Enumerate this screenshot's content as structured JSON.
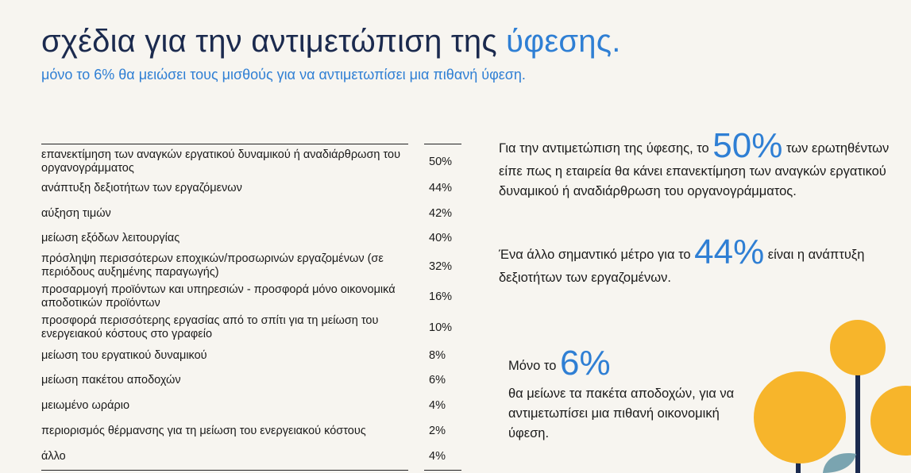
{
  "header": {
    "title_main": "σχέδια για την αντιμετώπιση της ",
    "title_accent": "ύφεσης.",
    "subtitle": "μόνο το 6% θα μειώσει τους μισθούς για να αντιμετωπίσει μια πιθανή ύφεση."
  },
  "table": {
    "rows": [
      {
        "label": "επανεκτίμηση των αναγκών εργατικού δυναμικού ή αναδιάρθρωση του οργανογράμματος",
        "value": "50%"
      },
      {
        "label": "ανάπτυξη δεξιοτήτων των εργαζόμενων",
        "value": "44%"
      },
      {
        "label": "αύξηση τιμών",
        "value": "42%"
      },
      {
        "label": "μείωση εξόδων λειτουργίας",
        "value": "40%"
      },
      {
        "label": "πρόσληψη περισσότερων εποχικών/προσωρινών εργαζομένων (σε περιόδους αυξημένης παραγωγής)",
        "value": "32%"
      },
      {
        "label": "προσαρμογή προϊόντων και υπηρεσιών - προσφορά μόνο οικονομικά αποδοτικών προϊόντων",
        "value": "16%"
      },
      {
        "label": "προσφορά περισσότερης εργασίας από το σπίτι για τη μείωση του ενεργειακού κόστους στο γραφείο",
        "value": "10%"
      },
      {
        "label": "μείωση του εργατικού δυναμικού",
        "value": "8%"
      },
      {
        "label": "μείωση πακέτου αποδοχών",
        "value": "6%"
      },
      {
        "label": "μειωμένο ωράριο",
        "value": "4%"
      },
      {
        "label": "περιορισμός θέρμανσης για τη μείωση του ενεργειακού κόστους",
        "value": "2%"
      },
      {
        "label": "άλλο",
        "value": "4%"
      }
    ]
  },
  "callouts": {
    "c1_pre": "Για την αντιμετώπιση της ύφεσης, το ",
    "c1_big": "50%",
    "c1_post": " των ερωτηθέντων είπε πως η εταιρεία θα κάνει επανεκτίμηση των αναγκών εργατικού δυναμικού ή αναδιάρθρωση του οργανογράμματος.",
    "c2_pre": "Ένα άλλο σημαντικό μέτρο για το ",
    "c2_big": "44%",
    "c2_post": " είναι η ανάπτυξη δεξιοτήτων των εργαζομένων.",
    "c3_pre": "Μόνο το ",
    "c3_big": "6%",
    "c3_post": "θα μείωνε τα πακέτα αποδοχών, για να αντιμετωπίσει μια πιθανή οικονομική ύφεση."
  },
  "colors": {
    "accent": "#2f7fd4",
    "title": "#1b2a4e",
    "background": "#f7f5f0",
    "decoration_yellow": "#f7b52b",
    "decoration_navy": "#1b2a4e",
    "decoration_teal": "#7aa4b0"
  }
}
